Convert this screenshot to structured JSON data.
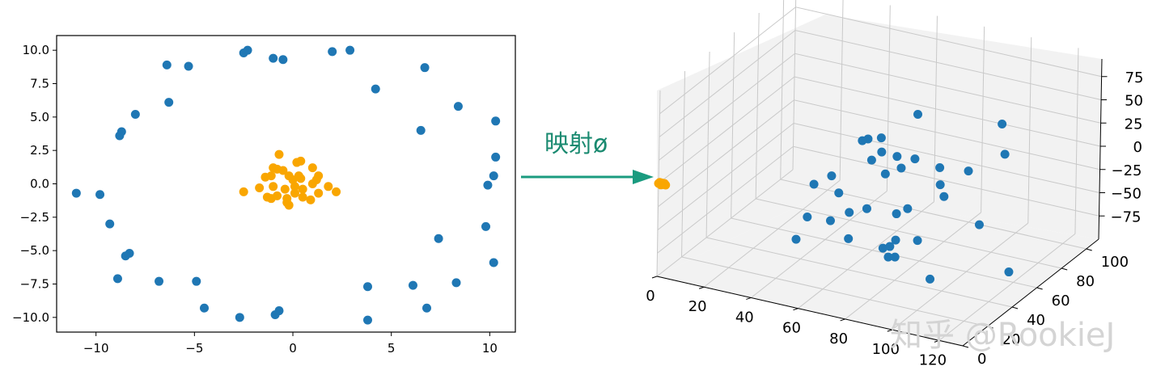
{
  "colors": {
    "outer": "#1f77b4",
    "inner": "#f9a600",
    "arrow": "#1a9b7f",
    "mapping_label": "#1a8a70",
    "pane": "#f2f2f2",
    "grid": "#c9c9c9",
    "watermark": "#d4d4d4"
  },
  "annotation": {
    "mapping_label": "映射ø"
  },
  "watermark": "知乎 @RookieJ",
  "chart_data": [
    {
      "type": "scatter",
      "xlim": [
        -12,
        11.3
      ],
      "ylim": [
        -11.1,
        11.1
      ],
      "x_ticks": [
        -10,
        -5,
        0,
        5,
        10
      ],
      "x_tick_labels": [
        "−10",
        "−5",
        "0",
        "5",
        "10"
      ],
      "y_ticks": [
        10,
        7.5,
        5,
        2.5,
        0,
        -2.5,
        -5,
        -7.5,
        -10
      ],
      "y_tick_labels": [
        "10.0",
        "7.5",
        "5.0",
        "2.5",
        "0.0",
        "−2.5",
        "−5.0",
        "−7.5",
        "−10.0"
      ],
      "grid": false,
      "series": [
        {
          "color_key": "outer",
          "points": [
            [
              -2.5,
              9.8
            ],
            [
              -2.3,
              10.0
            ],
            [
              -1.0,
              9.4
            ],
            [
              -0.5,
              9.3
            ],
            [
              2.0,
              9.9
            ],
            [
              2.9,
              10.0
            ],
            [
              -6.4,
              8.9
            ],
            [
              -5.3,
              8.8
            ],
            [
              6.7,
              8.7
            ],
            [
              4.2,
              7.1
            ],
            [
              -6.3,
              6.1
            ],
            [
              8.4,
              5.8
            ],
            [
              -8.0,
              5.2
            ],
            [
              10.3,
              4.7
            ],
            [
              -8.7,
              3.9
            ],
            [
              -8.8,
              3.6
            ],
            [
              6.5,
              4.0
            ],
            [
              10.3,
              2.0
            ],
            [
              10.2,
              0.6
            ],
            [
              9.9,
              -0.1
            ],
            [
              -11.0,
              -0.7
            ],
            [
              -9.8,
              -0.8
            ],
            [
              -9.3,
              -3.0
            ],
            [
              9.8,
              -3.2
            ],
            [
              7.4,
              -4.1
            ],
            [
              -8.3,
              -5.2
            ],
            [
              -8.5,
              -5.4
            ],
            [
              10.2,
              -5.9
            ],
            [
              -8.9,
              -7.1
            ],
            [
              -6.8,
              -7.3
            ],
            [
              -4.9,
              -7.3
            ],
            [
              8.3,
              -7.4
            ],
            [
              6.1,
              -7.6
            ],
            [
              3.8,
              -7.7
            ],
            [
              -4.5,
              -9.3
            ],
            [
              6.8,
              -9.3
            ],
            [
              -0.7,
              -9.5
            ],
            [
              -0.9,
              -9.8
            ],
            [
              -2.7,
              -10.0
            ],
            [
              3.8,
              -10.2
            ]
          ]
        },
        {
          "color_key": "inner",
          "points": [
            [
              -0.7,
              2.2
            ],
            [
              0.2,
              1.6
            ],
            [
              0.4,
              1.7
            ],
            [
              -1.0,
              1.2
            ],
            [
              -0.8,
              1.1
            ],
            [
              -0.5,
              1.0
            ],
            [
              1.0,
              1.2
            ],
            [
              -1.4,
              0.5
            ],
            [
              -1.1,
              0.6
            ],
            [
              -0.2,
              0.6
            ],
            [
              0.0,
              0.3
            ],
            [
              0.3,
              0.6
            ],
            [
              0.4,
              0.4
            ],
            [
              1.3,
              0.6
            ],
            [
              1.2,
              0.3
            ],
            [
              -1.7,
              -0.3
            ],
            [
              -1.0,
              -0.2
            ],
            [
              -0.4,
              -0.4
            ],
            [
              0.1,
              -0.2
            ],
            [
              0.5,
              -0.4
            ],
            [
              1.0,
              0.0
            ],
            [
              1.8,
              -0.2
            ],
            [
              2.2,
              -0.6
            ],
            [
              -2.5,
              -0.6
            ],
            [
              -1.3,
              -1.0
            ],
            [
              -0.8,
              -0.9
            ],
            [
              -0.3,
              -1.1
            ],
            [
              0.5,
              -1.0
            ],
            [
              0.9,
              -1.2
            ],
            [
              1.3,
              -0.7
            ],
            [
              -1.1,
              -1.1
            ],
            [
              -0.3,
              -1.4
            ],
            [
              -0.2,
              -1.6
            ],
            [
              0.1,
              -0.7
            ]
          ]
        }
      ]
    },
    {
      "type": "scatter",
      "projection": "3d",
      "x_ticks": [
        0,
        20,
        40,
        60,
        80,
        100,
        120
      ],
      "y_ticks": [
        0,
        20,
        40,
        60,
        80,
        100
      ],
      "z_ticks": [
        75,
        50,
        25,
        0,
        -25,
        -50,
        -75
      ],
      "z_tick_labels": [
        "75",
        "50",
        "25",
        "0",
        "−25",
        "−50",
        "−75"
      ],
      "grid": true,
      "series": [
        {
          "color_key": "outer",
          "note_points_in_data_units_are_not_recoverable": false,
          "points": [
            [
              95,
              70,
              -5
            ],
            [
              88,
              60,
              5
            ],
            [
              80,
              55,
              15
            ],
            [
              75,
              50,
              20
            ],
            [
              70,
              47,
              25
            ],
            [
              60,
              55,
              25
            ],
            [
              62,
              62,
              20
            ],
            [
              55,
              60,
              15
            ],
            [
              68,
              80,
              30
            ],
            [
              72,
              35,
              30
            ],
            [
              82,
              40,
              22
            ],
            [
              96,
              95,
              20
            ],
            [
              100,
              90,
              -5
            ],
            [
              50,
              45,
              -10
            ],
            [
              65,
              60,
              -15
            ],
            [
              40,
              50,
              -30
            ],
            [
              48,
              55,
              -40
            ],
            [
              85,
              40,
              -20
            ],
            [
              90,
              60,
              -25
            ],
            [
              55,
              35,
              -45
            ],
            [
              60,
              55,
              -50
            ],
            [
              78,
              80,
              -40
            ],
            [
              92,
              35,
              -45
            ],
            [
              70,
              60,
              -55
            ],
            [
              80,
              30,
              -55
            ],
            [
              100,
              70,
              -60
            ],
            [
              40,
              45,
              -60
            ],
            [
              50,
              60,
              -65
            ],
            [
              75,
              50,
              -70
            ],
            [
              80,
              40,
              -75
            ],
            [
              38,
              40,
              -80
            ],
            [
              55,
              50,
              -80
            ],
            [
              70,
              55,
              -85
            ],
            [
              72,
              50,
              -90
            ],
            [
              95,
              40,
              -90
            ],
            [
              118,
              60,
              -90
            ]
          ]
        },
        {
          "color_key": "inner",
          "points": [
            [
              0,
              0,
              0
            ],
            [
              1,
              0,
              0
            ],
            [
              2,
              0,
              0
            ],
            [
              1,
              1,
              0
            ],
            [
              0,
              1,
              0
            ],
            [
              2,
              1,
              0
            ],
            [
              1,
              0,
              1
            ],
            [
              1,
              0,
              -1
            ],
            [
              3,
              0,
              0
            ]
          ]
        }
      ]
    }
  ]
}
